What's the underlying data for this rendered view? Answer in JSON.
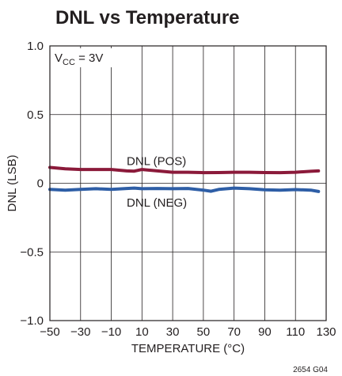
{
  "chart_data": {
    "type": "line",
    "title": "DNL vs Temperature",
    "xlabel": "TEMPERATURE (°C)",
    "ylabel": "DNL (LSB)",
    "xlim": [
      -50,
      130
    ],
    "ylim": [
      -1.0,
      1.0
    ],
    "x_ticks": [
      "−50",
      "−30",
      "−10",
      "10",
      "30",
      "50",
      "70",
      "90",
      "110",
      "130"
    ],
    "y_ticks": [
      "1.0",
      "0.5",
      "0",
      "−0.5",
      "−1.0"
    ],
    "grid": true,
    "condition": {
      "prefix": "V",
      "subscript": "CC",
      "suffix": " = 3V"
    },
    "figure_id": "2654 G04",
    "series": [
      {
        "name": "DNL (POS)",
        "color": "#8b1a3a",
        "x": [
          -50,
          -40,
          -30,
          -20,
          -10,
          0,
          5,
          10,
          20,
          30,
          40,
          50,
          60,
          70,
          80,
          90,
          100,
          110,
          120,
          125
        ],
        "y": [
          0.115,
          0.105,
          0.1,
          0.1,
          0.1,
          0.09,
          0.088,
          0.1,
          0.09,
          0.08,
          0.08,
          0.077,
          0.078,
          0.08,
          0.08,
          0.078,
          0.077,
          0.08,
          0.087,
          0.09
        ]
      },
      {
        "name": "DNL (NEG)",
        "color": "#2e5ea6",
        "x": [
          -50,
          -40,
          -30,
          -20,
          -10,
          0,
          5,
          10,
          20,
          30,
          40,
          50,
          55,
          60,
          70,
          80,
          90,
          100,
          110,
          120,
          125
        ],
        "y": [
          -0.045,
          -0.05,
          -0.045,
          -0.04,
          -0.045,
          -0.038,
          -0.035,
          -0.04,
          -0.038,
          -0.04,
          -0.038,
          -0.05,
          -0.058,
          -0.045,
          -0.035,
          -0.04,
          -0.047,
          -0.05,
          -0.046,
          -0.05,
          -0.06
        ]
      }
    ]
  }
}
